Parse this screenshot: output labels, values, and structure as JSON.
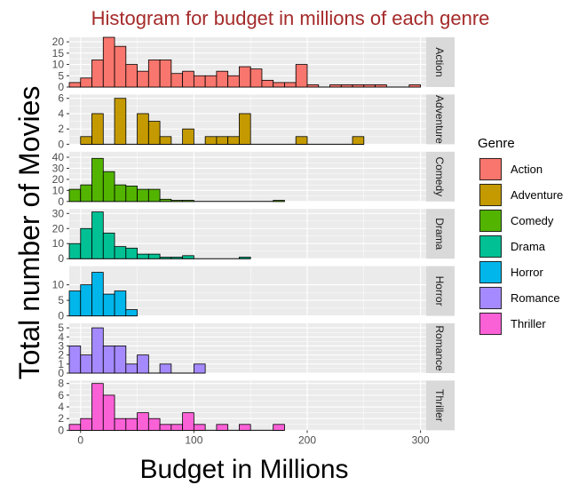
{
  "chart_data": {
    "type": "bar",
    "title": "Histogram for budget in millions of each genre",
    "xlabel": "Budget in Millions",
    "ylabel": "Total number of Movies",
    "xlim": [
      -10,
      305
    ],
    "x_ticks": [
      0,
      100,
      200,
      300
    ],
    "bin_width": 10,
    "legend_title": "Genre",
    "legend_position": "right",
    "grid": true,
    "panels": [
      {
        "name": "Action",
        "color": "#F8766D",
        "ylim": [
          0,
          22
        ],
        "y_ticks": [
          0,
          5,
          10,
          15,
          20
        ],
        "bins": [
          [
            -5,
            2
          ],
          [
            5,
            4
          ],
          [
            15,
            12
          ],
          [
            25,
            22
          ],
          [
            35,
            18
          ],
          [
            45,
            10
          ],
          [
            55,
            7
          ],
          [
            65,
            12
          ],
          [
            75,
            12
          ],
          [
            85,
            6
          ],
          [
            95,
            7
          ],
          [
            105,
            5
          ],
          [
            115,
            5
          ],
          [
            125,
            7
          ],
          [
            135,
            5
          ],
          [
            145,
            9
          ],
          [
            155,
            8
          ],
          [
            165,
            3
          ],
          [
            175,
            2
          ],
          [
            185,
            2
          ],
          [
            195,
            10
          ],
          [
            205,
            1
          ],
          [
            215,
            0
          ],
          [
            225,
            1
          ],
          [
            235,
            1
          ],
          [
            245,
            1
          ],
          [
            255,
            1
          ],
          [
            265,
            1
          ],
          [
            275,
            0
          ],
          [
            285,
            0
          ],
          [
            295,
            1
          ]
        ]
      },
      {
        "name": "Adventure",
        "color": "#C49A00",
        "ylim": [
          0,
          6.5
        ],
        "y_ticks": [
          0,
          2,
          4,
          6
        ],
        "bins": [
          [
            5,
            1
          ],
          [
            15,
            4
          ],
          [
            25,
            0
          ],
          [
            35,
            6
          ],
          [
            45,
            0
          ],
          [
            55,
            4
          ],
          [
            65,
            3
          ],
          [
            75,
            1
          ],
          [
            85,
            0
          ],
          [
            95,
            2
          ],
          [
            105,
            0
          ],
          [
            115,
            1
          ],
          [
            125,
            1
          ],
          [
            135,
            1
          ],
          [
            145,
            4
          ],
          [
            155,
            0
          ],
          [
            165,
            0
          ],
          [
            175,
            0
          ],
          [
            185,
            0
          ],
          [
            195,
            1
          ],
          [
            205,
            0
          ],
          [
            215,
            0
          ],
          [
            225,
            0
          ],
          [
            235,
            0
          ],
          [
            245,
            1
          ]
        ]
      },
      {
        "name": "Comedy",
        "color": "#53B400",
        "ylim": [
          0,
          45
        ],
        "y_ticks": [
          0,
          10,
          20,
          30,
          40
        ],
        "bins": [
          [
            -5,
            11
          ],
          [
            5,
            15
          ],
          [
            15,
            39
          ],
          [
            25,
            27
          ],
          [
            35,
            15
          ],
          [
            45,
            14
          ],
          [
            55,
            11
          ],
          [
            65,
            11
          ],
          [
            75,
            2
          ],
          [
            85,
            1
          ],
          [
            95,
            1
          ],
          [
            105,
            0
          ],
          [
            115,
            0
          ],
          [
            125,
            0
          ],
          [
            135,
            0
          ],
          [
            145,
            0
          ],
          [
            155,
            0
          ],
          [
            165,
            0
          ],
          [
            175,
            1
          ]
        ]
      },
      {
        "name": "Drama",
        "color": "#00C094",
        "ylim": [
          0,
          33
        ],
        "y_ticks": [
          0,
          10,
          20,
          30
        ],
        "bins": [
          [
            -5,
            10
          ],
          [
            5,
            20
          ],
          [
            15,
            31
          ],
          [
            25,
            17
          ],
          [
            35,
            8
          ],
          [
            45,
            7
          ],
          [
            55,
            3
          ],
          [
            65,
            3
          ],
          [
            75,
            1
          ],
          [
            85,
            1
          ],
          [
            95,
            2
          ],
          [
            105,
            0
          ],
          [
            115,
            0
          ],
          [
            125,
            0
          ],
          [
            135,
            0
          ],
          [
            145,
            1
          ]
        ]
      },
      {
        "name": "Horror",
        "color": "#00B6EB",
        "ylim": [
          0,
          16
        ],
        "y_ticks": [
          0,
          5,
          10
        ],
        "bins": [
          [
            -5,
            8
          ],
          [
            5,
            10
          ],
          [
            15,
            14
          ],
          [
            25,
            7
          ],
          [
            35,
            8
          ],
          [
            45,
            2
          ]
        ]
      },
      {
        "name": "Romance",
        "color": "#A58AFF",
        "ylim": [
          0,
          5.5
        ],
        "y_ticks": [
          0,
          1,
          2,
          3,
          4,
          5
        ],
        "bins": [
          [
            -5,
            3
          ],
          [
            5,
            2
          ],
          [
            15,
            5
          ],
          [
            25,
            3
          ],
          [
            35,
            3
          ],
          [
            45,
            1
          ],
          [
            55,
            2
          ],
          [
            65,
            0
          ],
          [
            75,
            1
          ],
          [
            85,
            0
          ],
          [
            95,
            0
          ],
          [
            105,
            1
          ]
        ]
      },
      {
        "name": "Thriller",
        "color": "#FB61D7",
        "ylim": [
          0,
          8.5
        ],
        "y_ticks": [
          0,
          2,
          4,
          6,
          8
        ],
        "bins": [
          [
            -5,
            1
          ],
          [
            5,
            2
          ],
          [
            15,
            8
          ],
          [
            25,
            6
          ],
          [
            35,
            2
          ],
          [
            45,
            2
          ],
          [
            55,
            3
          ],
          [
            65,
            2
          ],
          [
            75,
            1
          ],
          [
            85,
            1
          ],
          [
            95,
            3
          ],
          [
            105,
            1
          ],
          [
            115,
            0
          ],
          [
            125,
            1
          ],
          [
            135,
            0
          ],
          [
            145,
            1
          ],
          [
            155,
            0
          ],
          [
            165,
            0
          ],
          [
            175,
            1
          ]
        ]
      }
    ]
  }
}
